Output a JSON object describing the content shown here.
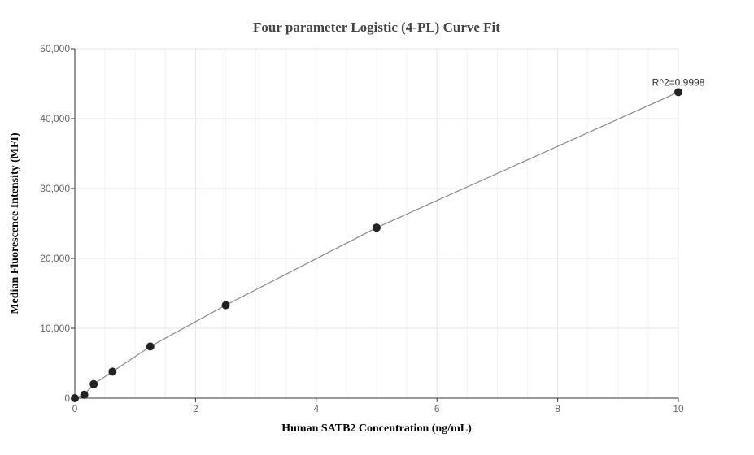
{
  "chart_data": {
    "type": "scatter",
    "title": "Four parameter Logistic (4-PL) Curve Fit",
    "xlabel": "Human SATB2 Concentration (ng/mL)",
    "ylabel": "Median Fluorescence Intensity (MFI)",
    "xlim": [
      0,
      10
    ],
    "ylim": [
      0,
      50000
    ],
    "x_ticks": [
      0,
      2,
      4,
      6,
      8,
      10
    ],
    "y_ticks": [
      0,
      10000,
      20000,
      30000,
      40000,
      50000
    ],
    "x_tick_labels": [
      "0",
      "2",
      "4",
      "6",
      "8",
      "10"
    ],
    "y_tick_labels": [
      "0",
      "10,000",
      "20,000",
      "30,000",
      "40,000",
      "50,000"
    ],
    "grid": true,
    "series": [
      {
        "x": [
          0,
          0.156,
          0.3125,
          0.625,
          1.25,
          2.5,
          5,
          10
        ],
        "y": [
          0,
          500,
          2000,
          3800,
          7400,
          13300,
          24400,
          43800
        ]
      }
    ],
    "fit_curve": {
      "x": [
        0,
        0.156,
        0.3125,
        0.625,
        1.25,
        2.5,
        5,
        10
      ],
      "y": [
        0,
        500,
        2000,
        3800,
        7400,
        13300,
        24400,
        43800
      ]
    },
    "annotations": [
      {
        "text": "R^2=0.9998",
        "x": 10,
        "y": 43800
      }
    ],
    "colors": {
      "points": "#222222",
      "line": "#888888",
      "grid": "#e6e6f0"
    }
  }
}
